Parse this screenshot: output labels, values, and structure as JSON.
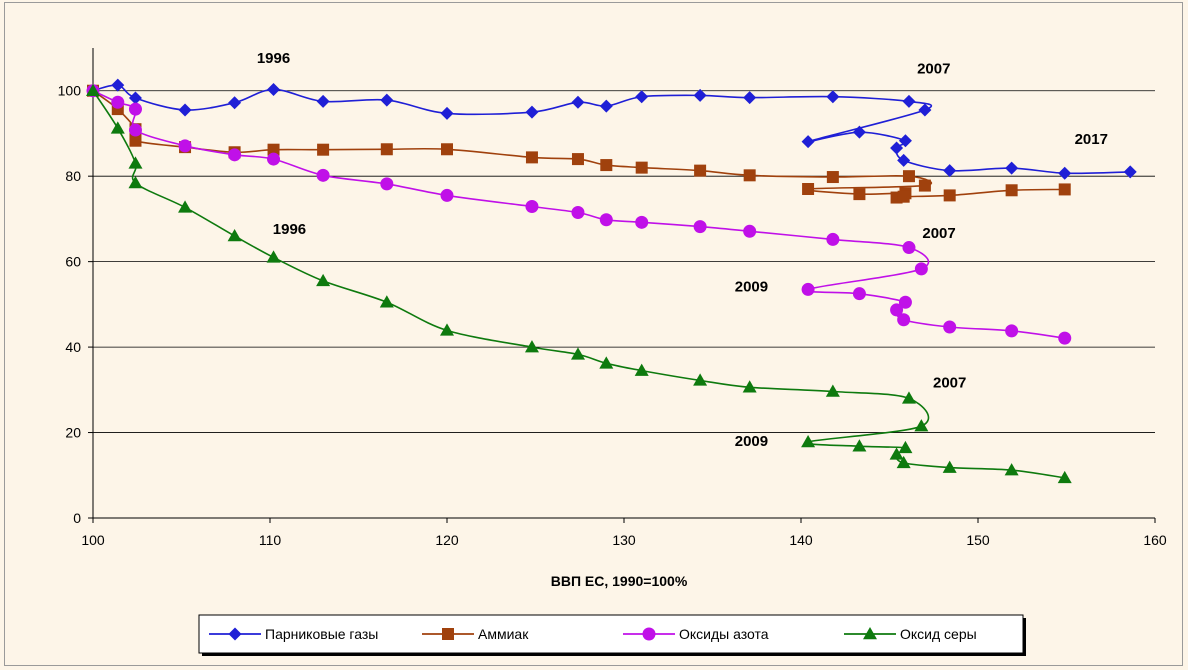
{
  "chart_data": {
    "type": "line",
    "xlabel": "ВВП ЕС, 1990=100%",
    "ylabel": "",
    "xlim": [
      100,
      160
    ],
    "ylim": [
      0,
      110
    ],
    "xticks": [
      100,
      110,
      120,
      130,
      140,
      150,
      160
    ],
    "yticks": [
      0,
      20,
      40,
      60,
      80,
      100
    ],
    "grid": "horizontal",
    "legend_position": "bottom",
    "series": [
      {
        "name": "Парниковые газы",
        "color": "#1f1fd6",
        "marker": "diamond",
        "points": [
          [
            100,
            100
          ],
          [
            101.4,
            101.3
          ],
          [
            102.4,
            98.3
          ],
          [
            105.2,
            95.5
          ],
          [
            108,
            97.2
          ],
          [
            110.2,
            100.3
          ],
          [
            113,
            97.5
          ],
          [
            116.6,
            97.8
          ],
          [
            120,
            94.7
          ],
          [
            124.8,
            95
          ],
          [
            127.4,
            97.3
          ],
          [
            129,
            96.4
          ],
          [
            131,
            98.6
          ],
          [
            134.3,
            98.9
          ],
          [
            137.1,
            98.4
          ],
          [
            141.8,
            98.6
          ],
          [
            146.1,
            97.5
          ],
          [
            147,
            95.5
          ],
          [
            140.4,
            88.1
          ],
          [
            143.3,
            90.3
          ],
          [
            145.9,
            88.3
          ],
          [
            145.4,
            86.6
          ],
          [
            145.8,
            83.7
          ],
          [
            148.4,
            81.3
          ],
          [
            151.9,
            81.9
          ],
          [
            154.9,
            80.7
          ],
          [
            158.6,
            81
          ]
        ]
      },
      {
        "name": "Аммиак",
        "color": "#a0410d",
        "marker": "square",
        "points": [
          [
            100,
            100
          ],
          [
            101.4,
            95.7
          ],
          [
            102.4,
            91
          ],
          [
            102.4,
            88.3
          ],
          [
            105.2,
            86.8
          ],
          [
            108,
            85.6
          ],
          [
            110.2,
            86.2
          ],
          [
            113,
            86.2
          ],
          [
            116.6,
            86.3
          ],
          [
            120,
            86.3
          ],
          [
            124.8,
            84.4
          ],
          [
            127.4,
            84
          ],
          [
            129,
            82.6
          ],
          [
            131,
            82
          ],
          [
            134.3,
            81.3
          ],
          [
            137.1,
            80.2
          ],
          [
            141.8,
            79.8
          ],
          [
            146.1,
            80
          ],
          [
            147,
            77.8
          ],
          [
            140.4,
            77
          ],
          [
            143.3,
            75.8
          ],
          [
            145.9,
            76
          ],
          [
            145.4,
            75
          ],
          [
            145.8,
            75.2
          ],
          [
            148.4,
            75.5
          ],
          [
            151.9,
            76.7
          ],
          [
            154.9,
            76.9
          ]
        ]
      },
      {
        "name": "Оксиды азота",
        "color": "#c010e8",
        "marker": "circle",
        "points": [
          [
            100,
            100
          ],
          [
            101.4,
            97.3
          ],
          [
            102.4,
            95.7
          ],
          [
            102.4,
            90.8
          ],
          [
            105.2,
            87.1
          ],
          [
            108,
            85
          ],
          [
            110.2,
            84
          ],
          [
            113,
            80.2
          ],
          [
            116.6,
            78.2
          ],
          [
            120,
            75.5
          ],
          [
            124.8,
            72.9
          ],
          [
            127.4,
            71.5
          ],
          [
            129,
            69.8
          ],
          [
            131,
            69.2
          ],
          [
            134.3,
            68.2
          ],
          [
            137.1,
            67.1
          ],
          [
            141.8,
            65.2
          ],
          [
            146.1,
            63.3
          ],
          [
            146.8,
            58.3
          ],
          [
            140.4,
            53.5
          ],
          [
            143.3,
            52.5
          ],
          [
            145.9,
            50.5
          ],
          [
            145.4,
            48.7
          ],
          [
            145.8,
            46.4
          ],
          [
            148.4,
            44.7
          ],
          [
            151.9,
            43.8
          ],
          [
            154.9,
            42.1
          ]
        ]
      },
      {
        "name": "Оксид серы",
        "color": "#0e7a0e",
        "marker": "triangle",
        "points": [
          [
            100,
            100
          ],
          [
            101.4,
            91.2
          ],
          [
            102.4,
            83
          ],
          [
            102.4,
            78.4
          ],
          [
            105.2,
            72.7
          ],
          [
            108,
            66
          ],
          [
            110.2,
            61
          ],
          [
            113,
            55.5
          ],
          [
            116.6,
            50.5
          ],
          [
            120,
            43.9
          ],
          [
            124.8,
            40
          ],
          [
            127.4,
            38.3
          ],
          [
            129,
            36.2
          ],
          [
            131,
            34.5
          ],
          [
            134.3,
            32.2
          ],
          [
            137.1,
            30.6
          ],
          [
            141.8,
            29.6
          ],
          [
            146.1,
            28
          ],
          [
            146.8,
            21.5
          ],
          [
            140.4,
            17.8
          ],
          [
            143.3,
            16.8
          ],
          [
            145.9,
            16.4
          ],
          [
            145.4,
            14.9
          ],
          [
            145.8,
            12.9
          ],
          [
            148.4,
            11.8
          ],
          [
            151.9,
            11.2
          ],
          [
            154.9,
            9.4
          ]
        ]
      }
    ],
    "annotations": [
      {
        "text": "1996",
        "x": 110.2,
        "y": 106.5
      },
      {
        "text": "2007",
        "x": 147.5,
        "y": 104
      },
      {
        "text": "2017",
        "x": 156.4,
        "y": 87.5
      },
      {
        "text": "1996",
        "x": 111.1,
        "y": 66.5
      },
      {
        "text": "2007",
        "x": 147.8,
        "y": 65.5
      },
      {
        "text": "2009",
        "x": 137.2,
        "y": 53
      },
      {
        "text": "2007",
        "x": 148.4,
        "y": 30.5
      },
      {
        "text": "2009",
        "x": 137.2,
        "y": 16.8
      }
    ]
  }
}
